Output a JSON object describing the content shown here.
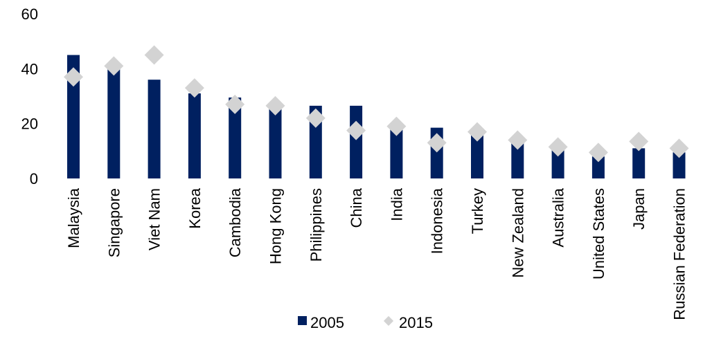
{
  "chart_data": {
    "type": "bar",
    "title": "",
    "xlabel": "",
    "ylabel": "",
    "ylim": [
      0,
      60
    ],
    "yticks": [
      0,
      20,
      40,
      60
    ],
    "grid": false,
    "legend_position": "bottom-center",
    "categories": [
      "Malaysia",
      "Singapore",
      "Viet Nam",
      "Korea",
      "Cambodia",
      "Hong Kong",
      "Philippines",
      "China",
      "India",
      "Indonesia",
      "Turkey",
      "New Zealand",
      "Australia",
      "United States",
      "Japan",
      "Russian Federation"
    ],
    "series": [
      {
        "name": "2005",
        "mark": "bar",
        "color": "#002060",
        "values": [
          45,
          40,
          36,
          31,
          29.5,
          25.5,
          26.5,
          26.5,
          18,
          18.5,
          16,
          13,
          10.5,
          8,
          11,
          9.5
        ]
      },
      {
        "name": "2015",
        "mark": "diamond",
        "color": "#D3D3D3",
        "values": [
          37,
          41,
          45,
          33,
          27,
          26.5,
          22,
          17.5,
          19,
          13,
          17,
          14,
          11.5,
          9.5,
          13.5,
          11
        ]
      }
    ]
  }
}
